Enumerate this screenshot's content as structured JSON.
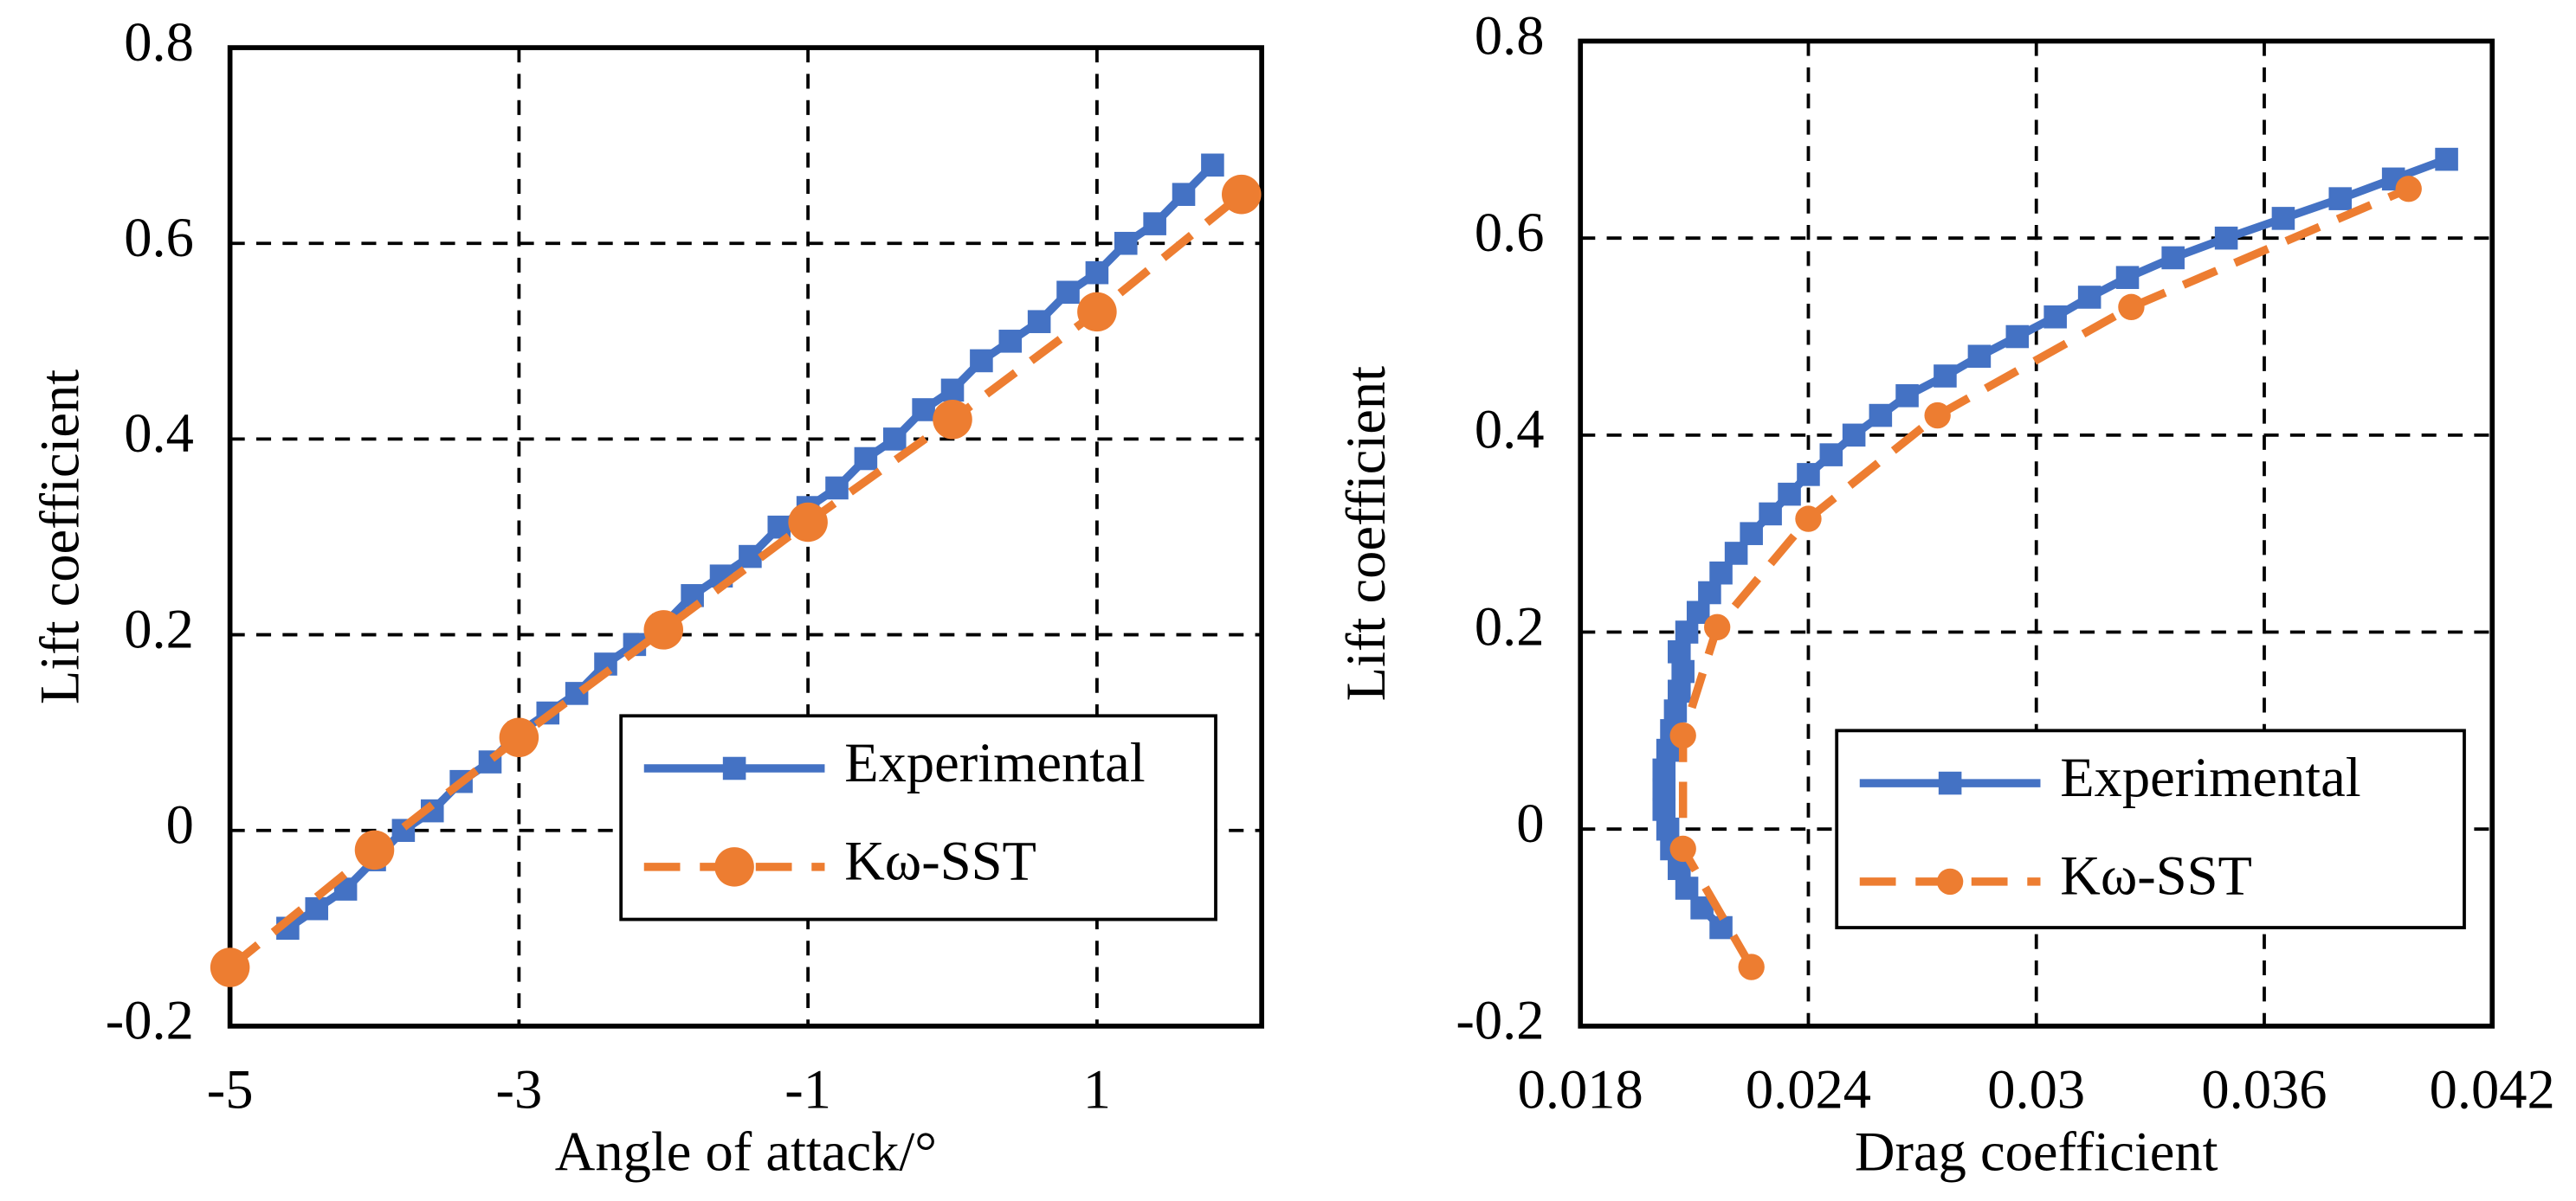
{
  "chart_data": [
    {
      "type": "line",
      "xlabel": "Angle of attack/°",
      "ylabel": "Lift coefficient",
      "xlim": [
        -5,
        2.14
      ],
      "xticks": [
        -5,
        -3,
        -1,
        1
      ],
      "ylim": [
        -0.2,
        0.8
      ],
      "yticks": [
        -0.2,
        0,
        0.2,
        0.4,
        0.6,
        0.8
      ],
      "grid": true,
      "legend": "lower right",
      "series": [
        {
          "name": "Experimental",
          "color": "#4472c4",
          "marker": "square",
          "dash": false,
          "x": [
            -4.6,
            -4.4,
            -4.2,
            -4.0,
            -3.8,
            -3.6,
            -3.4,
            -3.2,
            -3.0,
            -2.8,
            -2.6,
            -2.4,
            -2.2,
            -2.0,
            -1.8,
            -1.6,
            -1.4,
            -1.2,
            -1.0,
            -0.8,
            -0.6,
            -0.4,
            -0.2,
            0,
            0.2,
            0.4,
            0.6,
            0.8,
            1.0,
            1.2,
            1.4,
            1.6,
            1.8
          ],
          "values": [
            -0.1,
            -0.08,
            -0.06,
            -0.03,
            0.0,
            0.02,
            0.05,
            0.07,
            0.1,
            0.12,
            0.14,
            0.17,
            0.19,
            0.21,
            0.24,
            0.26,
            0.28,
            0.31,
            0.33,
            0.35,
            0.38,
            0.4,
            0.43,
            0.45,
            0.48,
            0.5,
            0.52,
            0.55,
            0.57,
            0.6,
            0.62,
            0.65,
            0.68
          ]
        },
        {
          "name": "Kω-SST",
          "color": "#ed7d31",
          "marker": "circle",
          "dash": true,
          "x": [
            -5,
            -4,
            -3,
            -2,
            -1,
            0,
            1,
            2
          ],
          "values": [
            -0.14,
            -0.02,
            0.095,
            0.205,
            0.315,
            0.42,
            0.53,
            0.65
          ]
        }
      ]
    },
    {
      "type": "line",
      "xlabel": "Drag coefficient",
      "ylabel": "Lift coefficient",
      "xlim": [
        0.018,
        0.042
      ],
      "xticks": [
        0.018,
        0.024,
        0.03,
        0.036,
        0.042
      ],
      "ylim": [
        -0.2,
        0.8
      ],
      "yticks": [
        -0.2,
        0,
        0.2,
        0.4,
        0.6,
        0.8
      ],
      "grid": true,
      "legend": "lower right",
      "series": [
        {
          "name": "Experimental",
          "color": "#4472c4",
          "marker": "square",
          "dash": false,
          "x": [
            0.0217,
            0.0212,
            0.0208,
            0.0206,
            0.0204,
            0.0203,
            0.0202,
            0.0202,
            0.0202,
            0.0203,
            0.0204,
            0.0205,
            0.0206,
            0.0207,
            0.0206,
            0.0208,
            0.0211,
            0.0214,
            0.0217,
            0.0221,
            0.0225,
            0.023,
            0.0235,
            0.024,
            0.0246,
            0.0252,
            0.0259,
            0.0266,
            0.0276,
            0.0285,
            0.0295,
            0.0305,
            0.0314,
            0.0324,
            0.0336,
            0.035,
            0.0365,
            0.038,
            0.0394,
            0.0408
          ],
          "values": [
            -0.1,
            -0.08,
            -0.06,
            -0.04,
            -0.02,
            0,
            0.02,
            0.04,
            0.06,
            0.08,
            0.1,
            0.12,
            0.14,
            0.16,
            0.18,
            0.2,
            0.22,
            0.24,
            0.26,
            0.28,
            0.3,
            0.32,
            0.34,
            0.36,
            0.38,
            0.4,
            0.42,
            0.44,
            0.46,
            0.48,
            0.5,
            0.52,
            0.54,
            0.56,
            0.58,
            0.6,
            0.62,
            0.64,
            0.66,
            0.68
          ]
        },
        {
          "name": "Kω-SST",
          "color": "#ed7d31",
          "marker": "circle",
          "dash": true,
          "x": [
            0.0225,
            0.0207,
            0.0207,
            0.0216,
            0.024,
            0.0274,
            0.0325,
            0.0398
          ],
          "values": [
            -0.14,
            -0.02,
            0.095,
            0.205,
            0.315,
            0.42,
            0.53,
            0.65
          ]
        }
      ]
    }
  ]
}
